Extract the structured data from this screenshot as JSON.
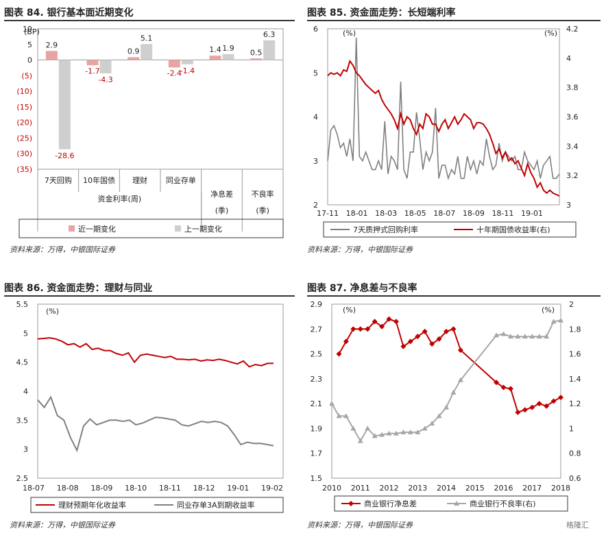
{
  "titles": {
    "c84": "图表 84. 银行基本面近期变化",
    "c85": "图表 85. 资金面走势：长短端利率",
    "c86": "图表 86. 资金面走势：理财与同业",
    "c87": "图表 87. 净息差与不良率"
  },
  "source": "资料来源：万得，中银国际证券",
  "watermark": "格隆汇",
  "colors": {
    "red": "#c00000",
    "lightred": "#e8a3a3",
    "gray": "#7f7f7f",
    "lightgray": "#cfcfcf"
  },
  "chart_data": [
    {
      "id": "c84",
      "type": "bar",
      "unit": "(BP)",
      "categories": [
        "7天回购",
        "10年国债",
        "理财",
        "同业存单",
        "净息差\n(季)",
        "不良率\n(季)"
      ],
      "group_label": "资金利率(周)",
      "series": [
        {
          "name": "近一期变化",
          "color": "#e8a3a3",
          "values": [
            2.9,
            -1.7,
            0.9,
            -2.4,
            1.4,
            0.5
          ],
          "labels": [
            "2.9",
            "-1.7",
            "0.9",
            "-2.4",
            "1.4",
            "0.5"
          ]
        },
        {
          "name": "上一期变化",
          "color": "#cfcfcf",
          "values": [
            -28.6,
            -4.3,
            5.1,
            -1.4,
            1.9,
            6.3
          ],
          "labels": [
            "-28.6",
            "-4.3",
            "5.1",
            "-1.4",
            "1.9",
            "6.3"
          ]
        }
      ],
      "ylim": [
        -35,
        10
      ],
      "yticks": [
        "10",
        "5",
        "0",
        "(5)",
        "(10)",
        "(15)",
        "(20)",
        "(25)",
        "(30)",
        "(35)"
      ]
    },
    {
      "id": "c85",
      "type": "line",
      "ylabel_left": "(%)",
      "ylabel_right": "(%)",
      "ylim_left": [
        2,
        6
      ],
      "ylim_right": [
        3,
        4.2
      ],
      "yticks_left": [
        "2",
        "3",
        "4",
        "5",
        "6"
      ],
      "yticks_right": [
        "3",
        "3.2",
        "3.4",
        "3.6",
        "3.8",
        "4",
        "4.2"
      ],
      "xticks": [
        "17-11",
        "18-01",
        "18-03",
        "18-05",
        "18-07",
        "18-09",
        "18-11",
        "19-01"
      ],
      "series": [
        {
          "name": "7天质押式回购利率",
          "axis": "left",
          "color": "#7f7f7f",
          "values": [
            3.0,
            3.7,
            3.8,
            3.6,
            3.3,
            3.4,
            3.1,
            3.5,
            3.0,
            5.8,
            3.1,
            3.0,
            3.2,
            3.0,
            2.8,
            2.8,
            3.0,
            2.8,
            3.9,
            2.7,
            3.1,
            3.0,
            2.8,
            4.8,
            2.8,
            2.6,
            3.2,
            3.2,
            4.1,
            3.5,
            2.8,
            3.2,
            3.0,
            3.2,
            4.2,
            2.6,
            2.9,
            2.9,
            2.6,
            2.8,
            2.7,
            3.1,
            2.6,
            2.6,
            3.1,
            2.8,
            3.0,
            2.7,
            3.0,
            2.9,
            3.5,
            3.1,
            2.8,
            2.9,
            3.4,
            3.0,
            3.2,
            3.1,
            3.0,
            3.1,
            2.8,
            2.8,
            3.2,
            3.0,
            2.9,
            2.8,
            3.0,
            2.6,
            2.9,
            3.0,
            3.1,
            2.6,
            2.6,
            2.7
          ]
        },
        {
          "name": "十年期国债收益率(右)",
          "axis": "right",
          "color": "#c00000",
          "values": [
            3.88,
            3.9,
            3.89,
            3.9,
            3.88,
            3.92,
            3.91,
            3.98,
            3.95,
            3.9,
            3.88,
            3.85,
            3.82,
            3.8,
            3.78,
            3.76,
            3.78,
            3.72,
            3.68,
            3.65,
            3.62,
            3.58,
            3.52,
            3.62,
            3.55,
            3.6,
            3.58,
            3.52,
            3.48,
            3.55,
            3.52,
            3.62,
            3.6,
            3.55,
            3.55,
            3.5,
            3.55,
            3.58,
            3.52,
            3.56,
            3.6,
            3.55,
            3.58,
            3.62,
            3.6,
            3.58,
            3.52,
            3.56,
            3.56,
            3.55,
            3.52,
            3.48,
            3.42,
            3.35,
            3.38,
            3.32,
            3.36,
            3.3,
            3.32,
            3.28,
            3.3,
            3.25,
            3.2,
            3.28,
            3.22,
            3.18,
            3.12,
            3.15,
            3.1,
            3.08,
            3.1,
            3.08,
            3.07,
            3.06
          ]
        }
      ]
    },
    {
      "id": "c86",
      "type": "line",
      "ylabel_left": "(%)",
      "ylim": [
        2.5,
        5.5
      ],
      "yticks": [
        "2.5",
        "3",
        "3.5",
        "4",
        "4.5",
        "5",
        "5.5"
      ],
      "xticks": [
        "18-07",
        "18-08",
        "18-09",
        "18-10",
        "18-11",
        "18-12",
        "19-01",
        "19-02"
      ],
      "series": [
        {
          "name": "理财预期年化收益率",
          "color": "#c00000",
          "values": [
            4.9,
            4.91,
            4.92,
            4.9,
            4.86,
            4.8,
            4.82,
            4.76,
            4.82,
            4.72,
            4.74,
            4.7,
            4.7,
            4.65,
            4.62,
            4.66,
            4.5,
            4.62,
            4.64,
            4.62,
            4.6,
            4.58,
            4.6,
            4.55,
            4.55,
            4.54,
            4.55,
            4.52,
            4.54,
            4.53,
            4.55,
            4.53,
            4.5,
            4.47,
            4.52,
            4.42,
            4.46,
            4.44,
            4.48,
            4.48
          ]
        },
        {
          "name": "同业存单3A到期收益率",
          "color": "#7f7f7f",
          "values": [
            3.85,
            3.72,
            3.9,
            3.58,
            3.5,
            3.2,
            2.98,
            3.4,
            3.52,
            3.42,
            3.46,
            3.5,
            3.5,
            3.48,
            3.5,
            3.42,
            3.45,
            3.5,
            3.55,
            3.54,
            3.52,
            3.5,
            3.42,
            3.4,
            3.44,
            3.48,
            3.46,
            3.48,
            3.46,
            3.4,
            3.25,
            3.08,
            3.12,
            3.1,
            3.1,
            3.08,
            3.06
          ]
        }
      ]
    },
    {
      "id": "c87",
      "type": "line",
      "ylabel_left": "(%)",
      "ylabel_right": "(%)",
      "ylim_left": [
        1.5,
        2.9
      ],
      "ylim_right": [
        0.6,
        2.0
      ],
      "yticks_left": [
        "1.5",
        "1.7",
        "1.9",
        "2.1",
        "2.3",
        "2.5",
        "2.7",
        "2.9"
      ],
      "yticks_right": [
        "0.6",
        "0.8",
        "1",
        "1.2",
        "1.4",
        "1.6",
        "1.8",
        "2"
      ],
      "xticks": [
        "2010",
        "2011",
        "2012",
        "2013",
        "2014",
        "2015",
        "2016",
        "2017",
        "2018"
      ],
      "x_range": [
        2010,
        2018
      ],
      "series": [
        {
          "name": "商业银行净息差",
          "axis": "left",
          "color": "#c00000",
          "marker": "diamond",
          "x": [
            2010.25,
            2010.5,
            2010.75,
            2011.0,
            2011.25,
            2011.5,
            2011.75,
            2012.0,
            2012.25,
            2012.5,
            2012.75,
            2013.0,
            2013.25,
            2013.5,
            2013.75,
            2014.0,
            2014.25,
            2014.5,
            2015.75,
            2016.0,
            2016.25,
            2016.5,
            2016.75,
            2017.0,
            2017.25,
            2017.5,
            2017.75,
            2018.0
          ],
          "values": [
            2.5,
            2.6,
            2.7,
            2.7,
            2.7,
            2.76,
            2.72,
            2.78,
            2.76,
            2.56,
            2.6,
            2.64,
            2.68,
            2.58,
            2.62,
            2.68,
            2.7,
            2.53,
            2.27,
            2.23,
            2.22,
            2.03,
            2.05,
            2.07,
            2.1,
            2.08,
            2.12,
            2.15
          ]
        },
        {
          "name": "商业银行不良率(右)",
          "axis": "right",
          "color": "#a6a6a6",
          "marker": "triangle",
          "x": [
            2010.0,
            2010.25,
            2010.5,
            2010.75,
            2011.0,
            2011.25,
            2011.5,
            2011.75,
            2012.0,
            2012.25,
            2012.5,
            2012.75,
            2013.0,
            2013.25,
            2013.5,
            2013.75,
            2014.0,
            2014.25,
            2014.5,
            2015.75,
            2016.0,
            2016.25,
            2016.5,
            2016.75,
            2017.0,
            2017.25,
            2017.5,
            2017.75,
            2018.0
          ],
          "values": [
            1.2,
            1.1,
            1.1,
            1.0,
            0.9,
            1.0,
            0.94,
            0.95,
            0.96,
            0.96,
            0.97,
            0.97,
            0.97,
            1.0,
            1.04,
            1.1,
            1.17,
            1.29,
            1.39,
            1.75,
            1.76,
            1.74,
            1.74,
            1.74,
            1.74,
            1.74,
            1.74,
            1.86,
            1.87
          ]
        }
      ]
    }
  ]
}
